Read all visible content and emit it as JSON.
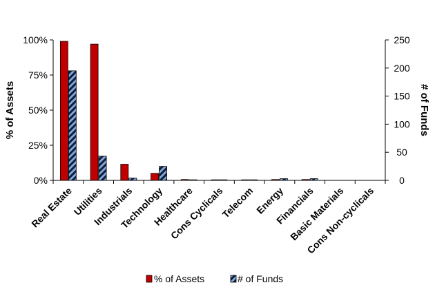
{
  "chart_data": {
    "type": "bar",
    "categories": [
      "Real Estate",
      "Utilities",
      "Industrials",
      "Technology",
      "Healthcare",
      "Cons Cyclicals",
      "Telecom",
      "Energy",
      "Financials",
      "Basic Materials",
      "Cons Non-cyclicals"
    ],
    "series": [
      {
        "name": "% of Assets",
        "axis": "left",
        "color": "#c00000",
        "pattern": "solid",
        "values": [
          99,
          97,
          11.5,
          5,
          0.6,
          0.4,
          0.4,
          0.6,
          0.6,
          0,
          0
        ]
      },
      {
        "name": "# of Funds",
        "axis": "right",
        "color": "#7fa7d8",
        "pattern": "diagonal-stripes-dark",
        "values": [
          195,
          43,
          4,
          25,
          1,
          1,
          1,
          3,
          3,
          0,
          0
        ]
      }
    ],
    "ylabel_left": "% of Assets",
    "ylabel_right": "# of Funds",
    "ylim_left": [
      0,
      100
    ],
    "ylim_right": [
      0,
      250
    ],
    "left_ticks": [
      "0%",
      "25%",
      "50%",
      "75%",
      "100%"
    ],
    "left_tick_values": [
      0,
      25,
      50,
      75,
      100
    ],
    "right_ticks": [
      "0",
      "50",
      "100",
      "150",
      "200",
      "250"
    ],
    "right_tick_values": [
      0,
      50,
      100,
      150,
      200,
      250
    ],
    "grid": false,
    "legend_position": "bottom-center"
  }
}
